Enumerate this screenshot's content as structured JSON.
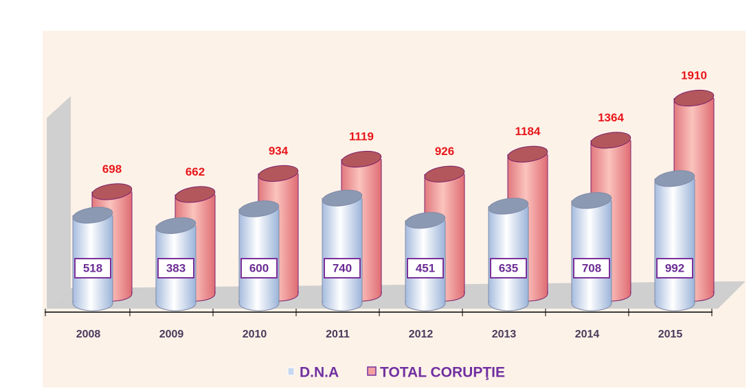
{
  "chart_data": {
    "type": "cylinder-bar",
    "categories": [
      "2008",
      "2009",
      "2010",
      "2011",
      "2012",
      "2013",
      "2014",
      "2015"
    ],
    "series": [
      {
        "name": "D.N.A",
        "color": "#c8d8f0",
        "values": [
          518,
          383,
          600,
          740,
          451,
          635,
          708,
          992
        ]
      },
      {
        "name": "TOTAL CORUPŢIE",
        "color": "#f4a0a0",
        "values": [
          698,
          662,
          934,
          1119,
          926,
          1184,
          1364,
          1910
        ]
      }
    ]
  }
}
